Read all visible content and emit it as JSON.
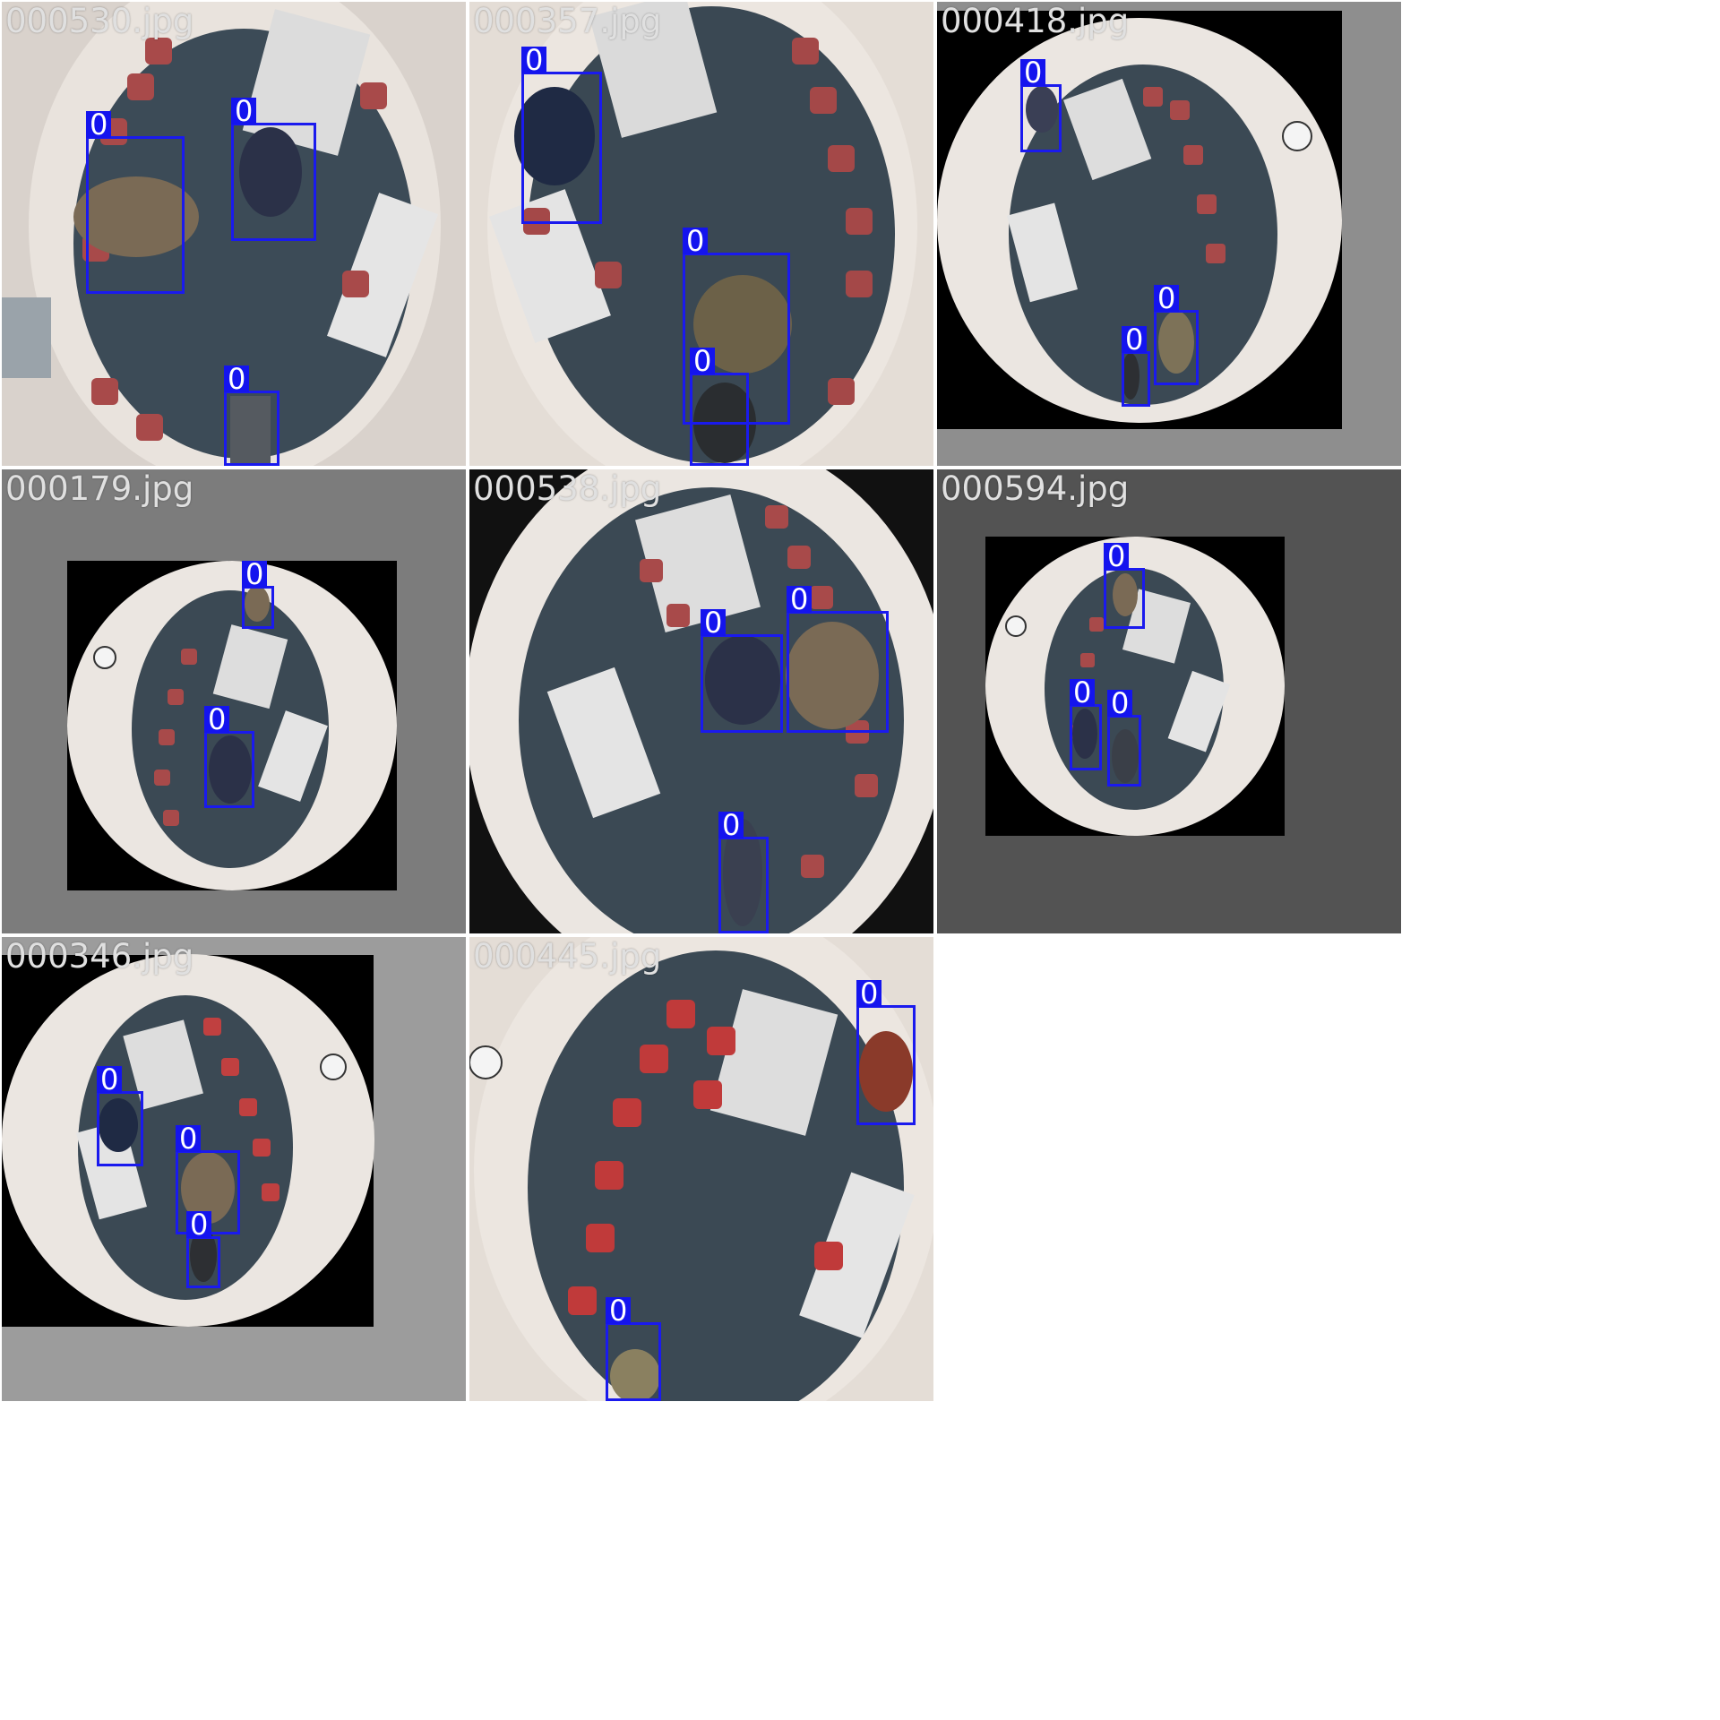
{
  "tiles": [
    {
      "filename": "000530.jpg",
      "detections": [
        "0",
        "0",
        "0"
      ]
    },
    {
      "filename": "000357.jpg",
      "detections": [
        "0",
        "0",
        "0"
      ]
    },
    {
      "filename": "000418.jpg",
      "detections": [
        "0",
        "0",
        "0"
      ]
    },
    {
      "filename": "000179.jpg",
      "detections": [
        "0",
        "0"
      ]
    },
    {
      "filename": "000538.jpg",
      "detections": [
        "0",
        "0",
        "0"
      ]
    },
    {
      "filename": "000594.jpg",
      "detections": [
        "0",
        "0",
        "0"
      ]
    },
    {
      "filename": "000346.jpg",
      "detections": [
        "0",
        "0",
        "0"
      ]
    },
    {
      "filename": "000445.jpg",
      "detections": [
        "0",
        "0"
      ]
    }
  ],
  "colors": {
    "box": "#1a1aee",
    "carpet": "#3a4a55",
    "wall": "#e8e2dc",
    "chair": "#b04848",
    "padding_gray": "#8a8a8a",
    "black_bg": "#000000"
  }
}
